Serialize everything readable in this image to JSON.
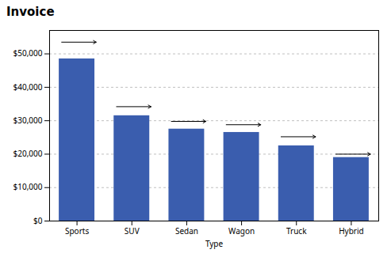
{
  "chart_data": {
    "type": "bar",
    "title": "Invoice",
    "xlabel": "Type",
    "categories": [
      "Sports",
      "SUV",
      "Sedan",
      "Wagon",
      "Truck",
      "Hybrid"
    ],
    "values": [
      48500,
      31500,
      27500,
      26500,
      22500,
      19000
    ],
    "arrow_values": [
      53500,
      34200,
      29800,
      28800,
      25200,
      20000
    ],
    "color": "#3A5DAE",
    "ylim": [
      0,
      57000
    ],
    "yticks": [
      {
        "value": 0,
        "label": "$0"
      },
      {
        "value": 10000,
        "label": "$10,000"
      },
      {
        "value": 20000,
        "label": "$20,000"
      },
      {
        "value": 30000,
        "label": "$30,000"
      },
      {
        "value": 40000,
        "label": "$40,000"
      },
      {
        "value": 50000,
        "label": "$50,000"
      }
    ],
    "grid": true
  }
}
